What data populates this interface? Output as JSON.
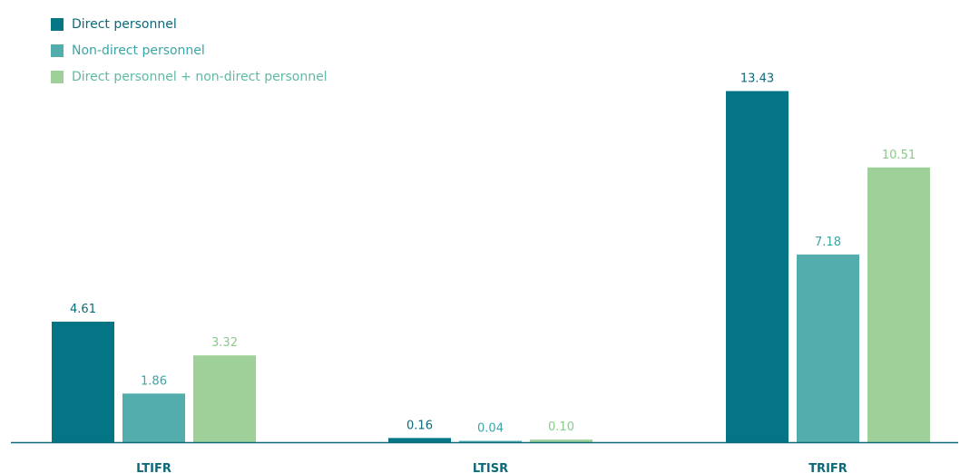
{
  "chart_data": {
    "type": "bar",
    "title": "",
    "xlabel": "",
    "ylabel": "",
    "categories": [
      "LTIFR",
      "LTISR",
      "TRIFR"
    ],
    "series": [
      {
        "name": "Direct personnel",
        "values": [
          4.61,
          0.16,
          13.43
        ],
        "labels": [
          "4.61",
          "0.16",
          "13.43"
        ],
        "color": "#037585"
      },
      {
        "name": "Non-direct personnel",
        "values": [
          1.86,
          0.04,
          7.18
        ],
        "labels": [
          "1.86",
          "0.04",
          "7.18"
        ],
        "color": "#52ADAC"
      },
      {
        "name": "Direct personnel + non-direct personnel",
        "values": [
          3.32,
          0.1,
          10.51
        ],
        "labels": [
          "3.32",
          "0.10",
          "10.51"
        ],
        "color": "#A0D09A"
      }
    ],
    "label_colors": [
      "#0B6A7A",
      "#3AA6A6",
      "#8CC98D"
    ],
    "category_label_color": "#0B6A7A",
    "axis_color": "#0B6A7A",
    "ylim": [
      0,
      14
    ],
    "grid": false,
    "legend": "top-left"
  }
}
